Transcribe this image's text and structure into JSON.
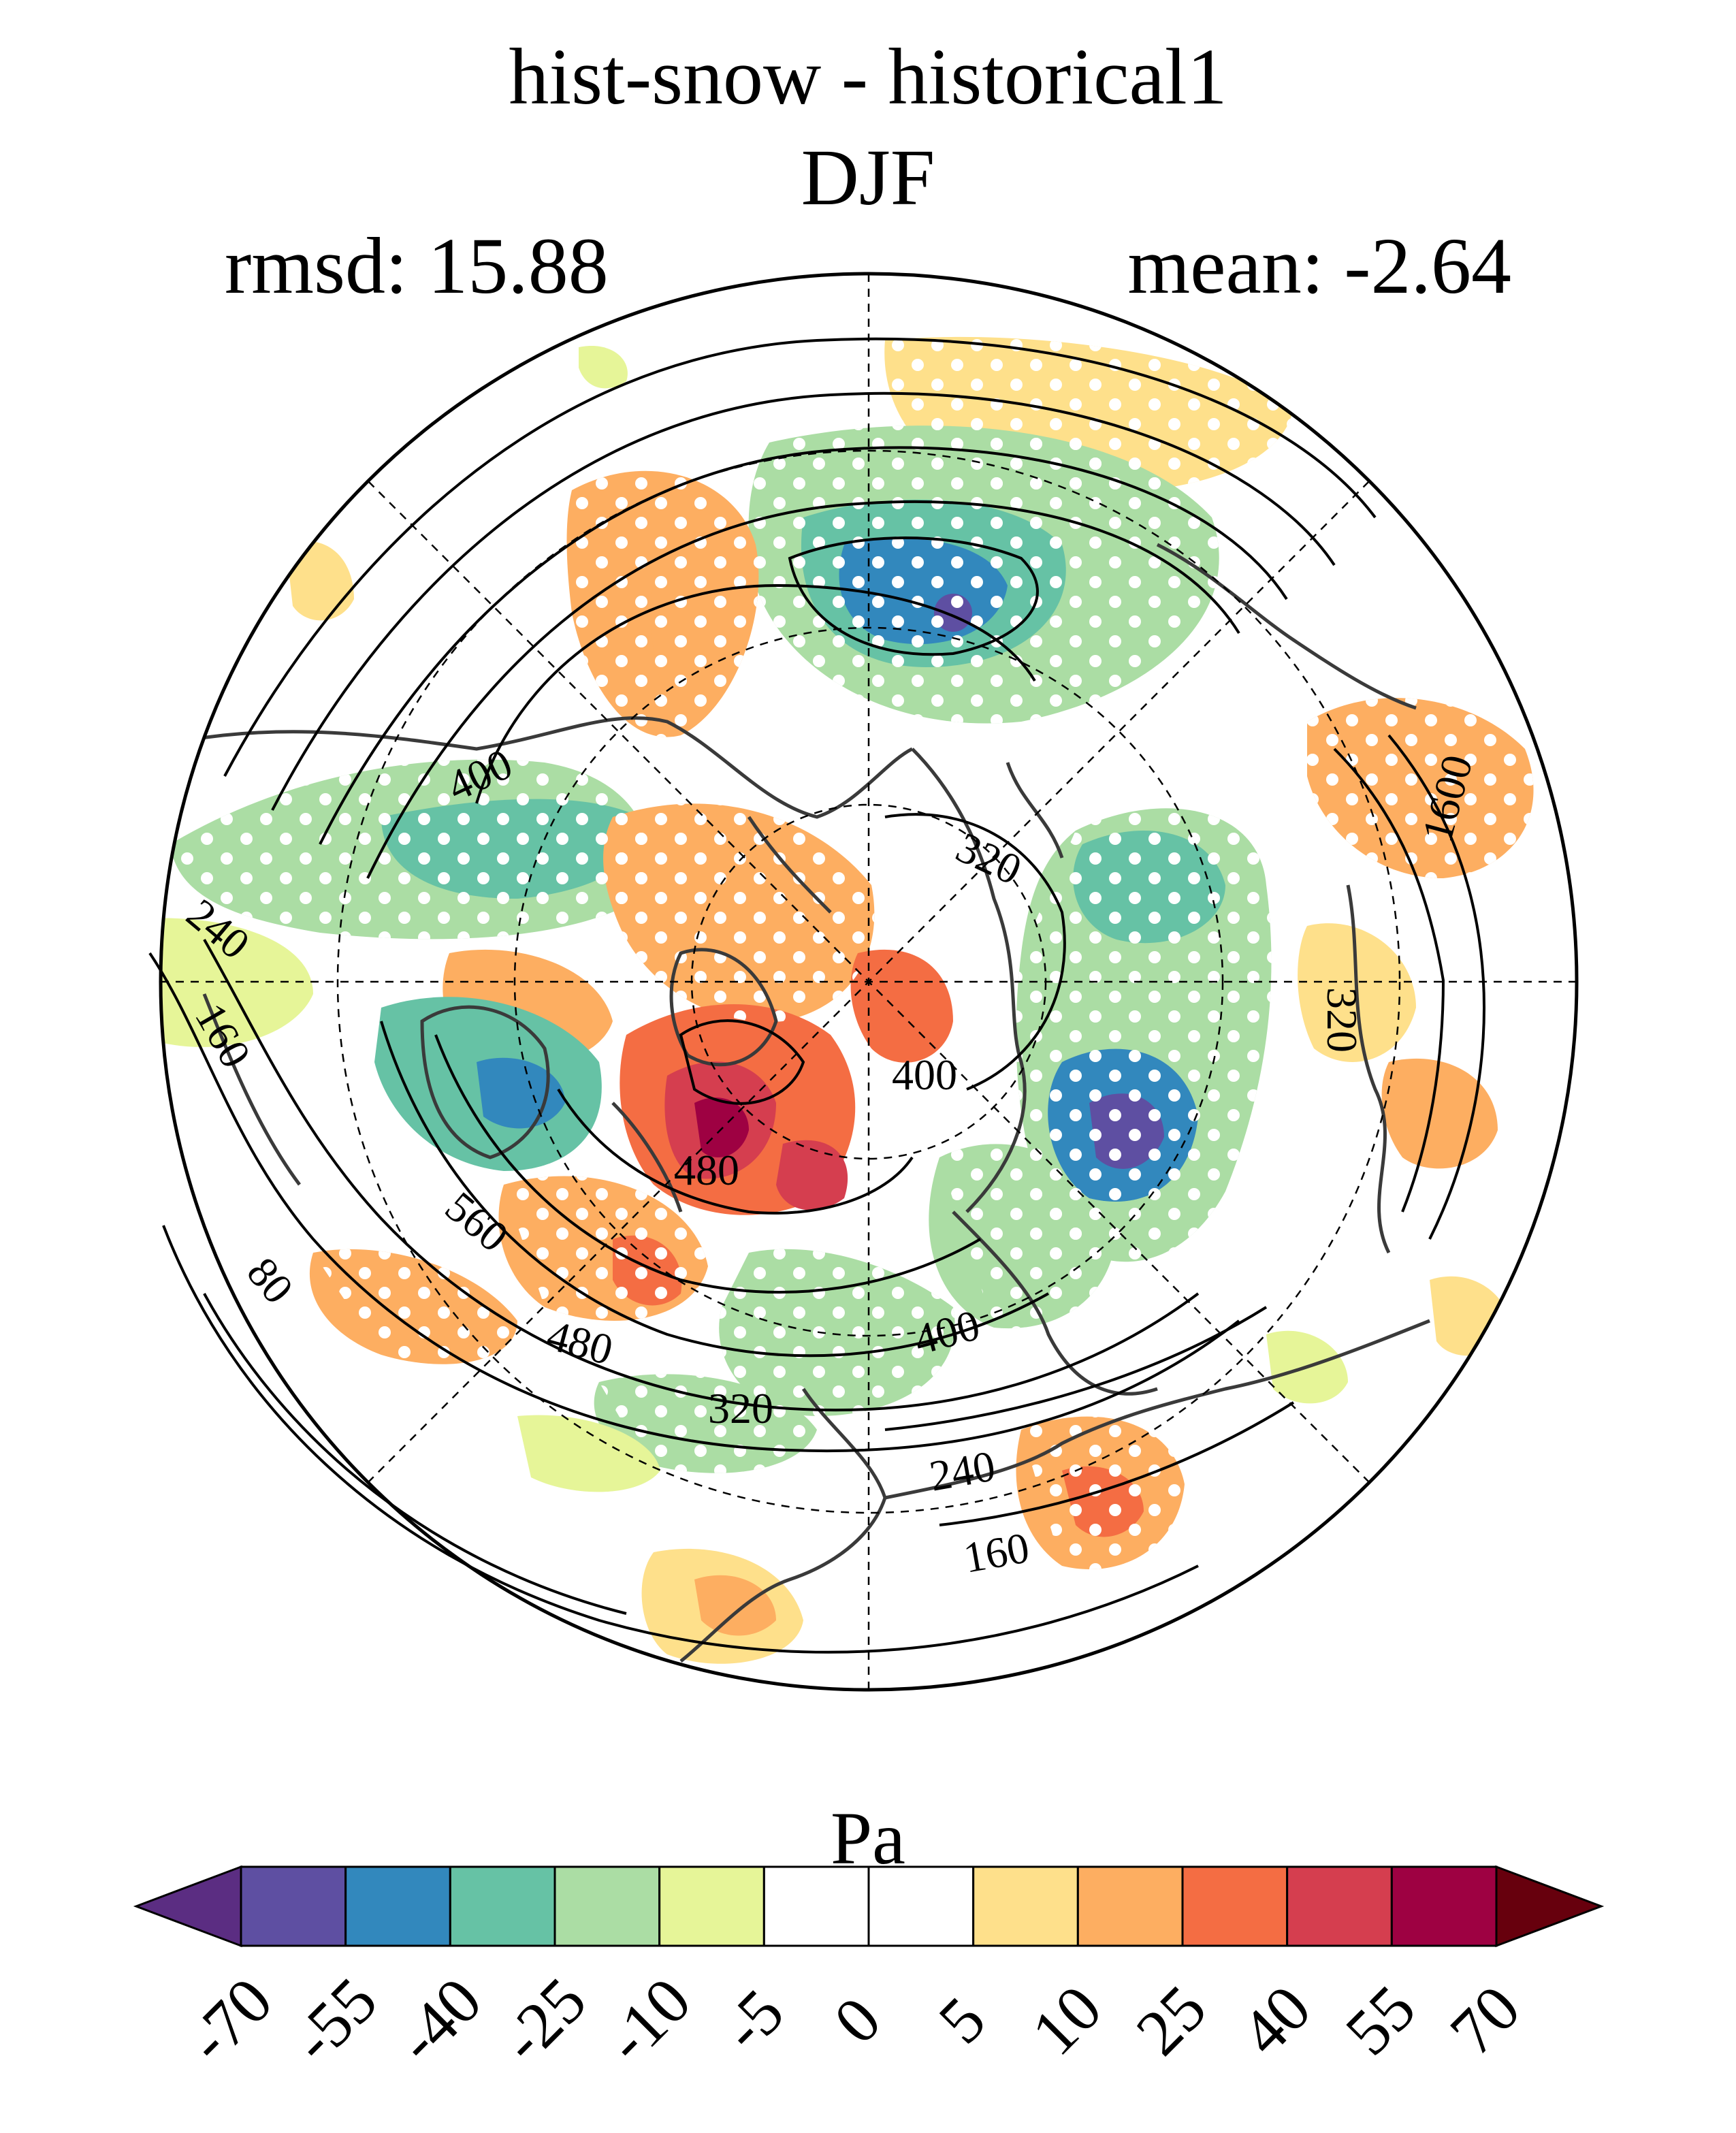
{
  "title": "hist-snow - historical1",
  "season": "DJF",
  "stats": {
    "rmsd": "rmsd: 15.88",
    "mean": "mean: -2.64"
  },
  "contour_labels": [
    "400",
    "320",
    "240",
    "160",
    "80",
    "400",
    "480",
    "560",
    "480",
    "320",
    "400",
    "240",
    "160",
    "1600",
    "320"
  ],
  "colorbar": {
    "unit": "Pa",
    "ticks": [
      "-70",
      "-55",
      "-40",
      "-25",
      "-10",
      "-5",
      "0",
      "5",
      "10",
      "25",
      "40",
      "55",
      "70"
    ],
    "colors": [
      "#5e4fa2",
      "#3288bd",
      "#66c2a5",
      "#abdda4",
      "#e6f598",
      "#ffffff",
      "#ffffff",
      "#fee08b",
      "#fdae61",
      "#f46d43",
      "#d53e4f",
      "#9e0142"
    ],
    "under_color": "#5b2d82",
    "over_color": "#67000d"
  },
  "palette": {
    "purple": "#5e4fa2",
    "blue": "#3288bd",
    "teal": "#66c2a5",
    "lightgreen": "#abdda4",
    "yellowgreen": "#e6f598",
    "yellow": "#fee08b",
    "orange": "#fdae61",
    "redorange": "#f46d43",
    "red": "#d53e4f",
    "darkred": "#9e0142"
  }
}
